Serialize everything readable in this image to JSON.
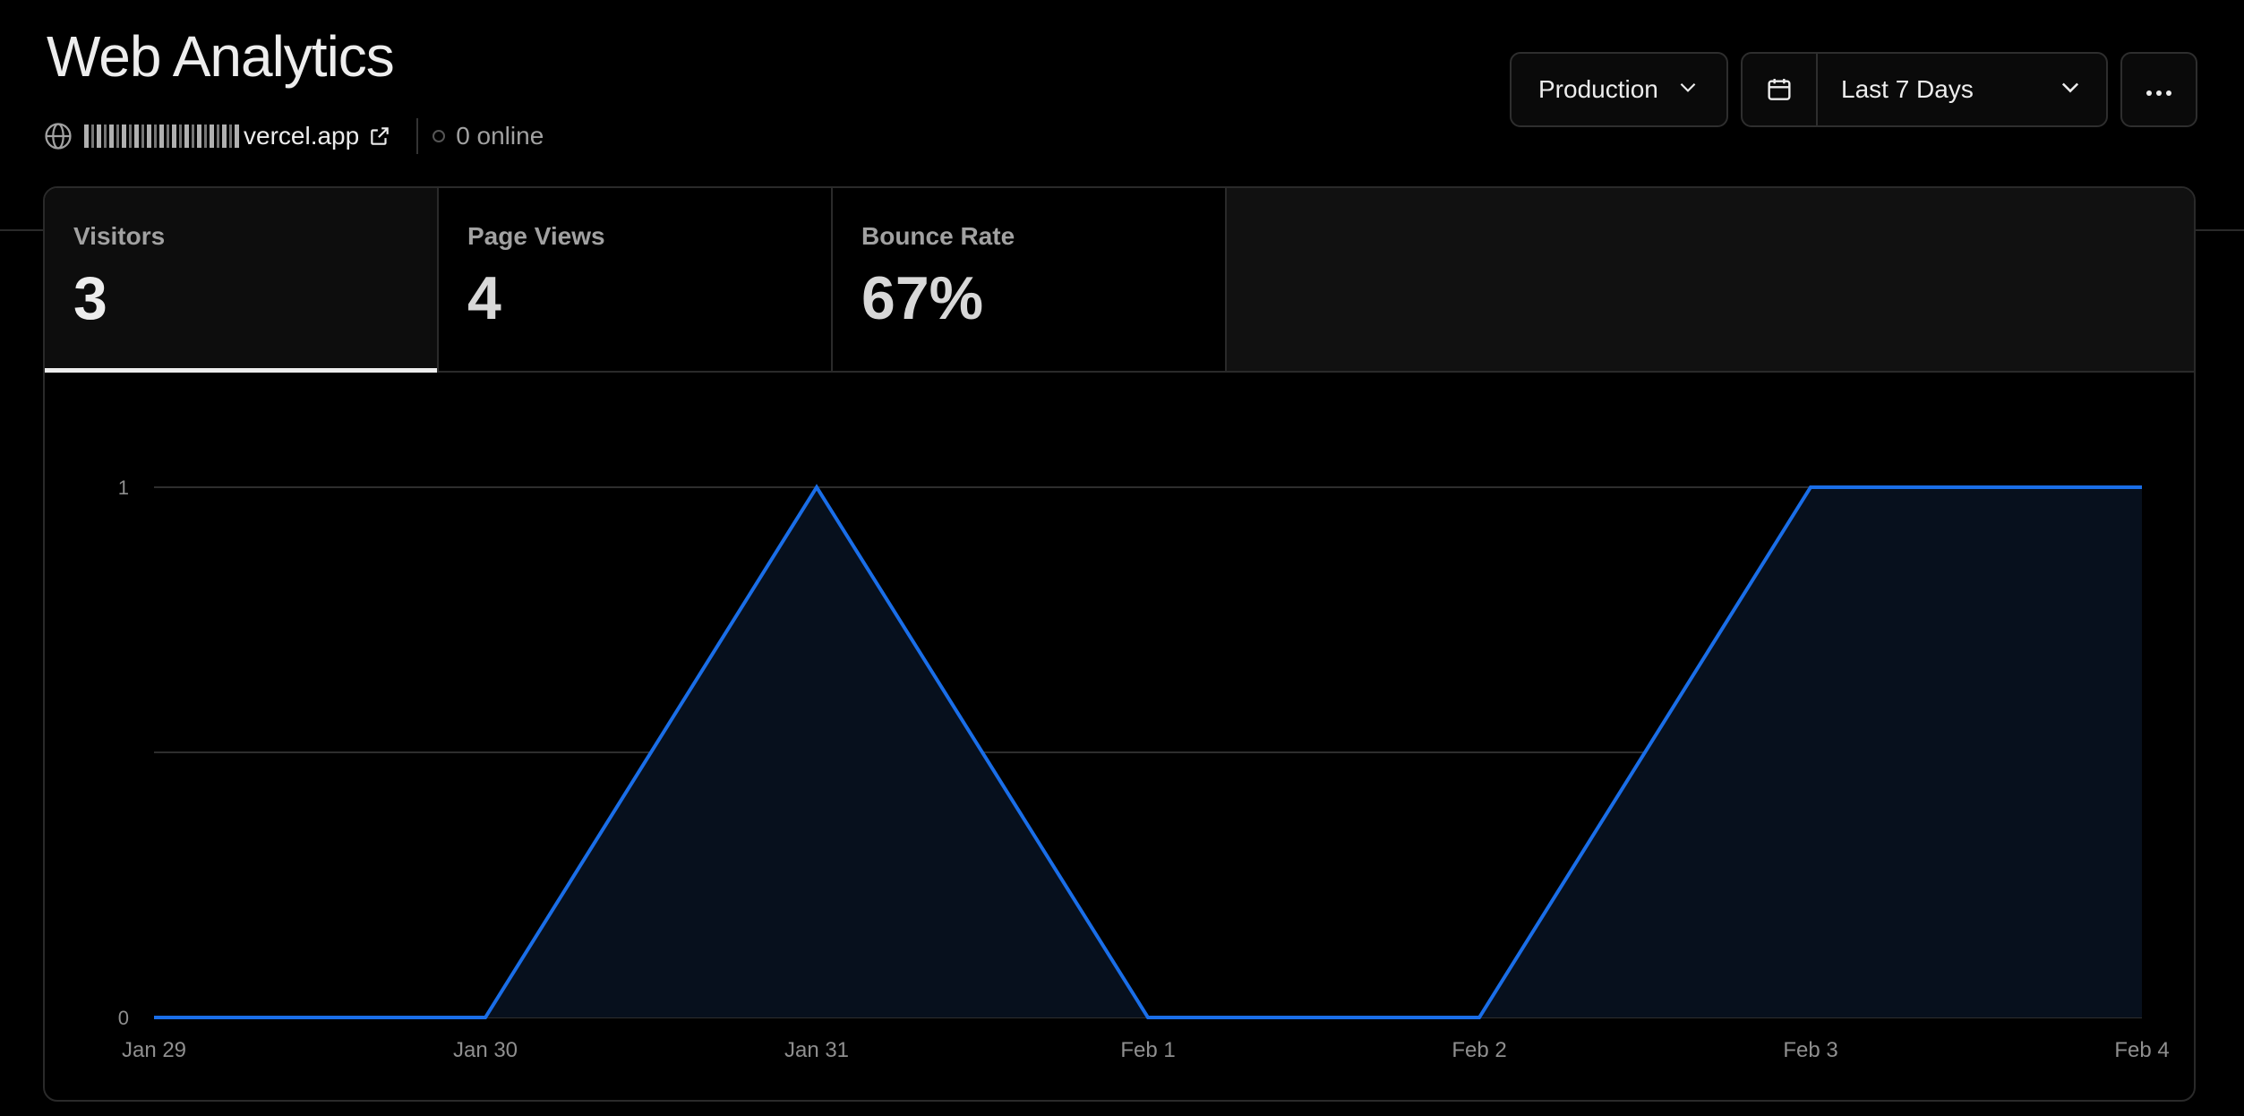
{
  "header": {
    "title": "Web Analytics",
    "domain_suffix": "vercel.app",
    "online": "0 online"
  },
  "toolbar": {
    "environment": "Production",
    "date_range": "Last 7 Days",
    "icons": {
      "environment": "chevron-down-icon",
      "calendar": "calendar-icon",
      "date_range": "chevron-down-icon",
      "more": "ellipsis-icon"
    }
  },
  "tabs": [
    {
      "label": "Visitors",
      "value": "3",
      "active": true
    },
    {
      "label": "Page Views",
      "value": "4",
      "active": false
    },
    {
      "label": "Bounce Rate",
      "value": "67%",
      "active": false
    }
  ],
  "colors": {
    "accent": "#1a6ee8",
    "area_fill": "#07101d",
    "background": "#000000"
  },
  "chart_data": {
    "type": "area",
    "categories": [
      "Jan 29",
      "Jan 30",
      "Jan 31",
      "Feb 1",
      "Feb 2",
      "Feb 3",
      "Feb 4"
    ],
    "series": [
      {
        "values": [
          0,
          0,
          1,
          0,
          0,
          1,
          1
        ]
      }
    ],
    "yticks": [
      "0",
      "1"
    ],
    "ylim": [
      0,
      1
    ],
    "grid": true
  }
}
